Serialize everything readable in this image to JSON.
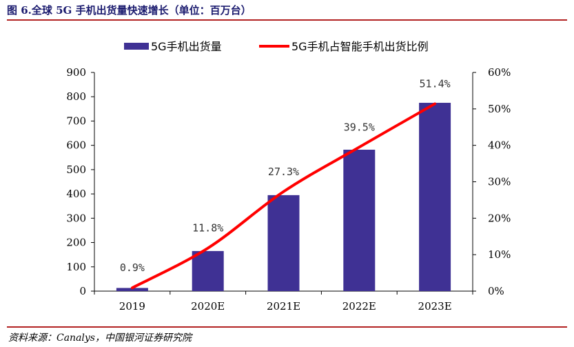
{
  "header": {
    "title": "图 6.全球 5G 手机出货量快速增长（单位：百万台）"
  },
  "footer": {
    "source": "资料来源：Canalys，中国银河证券研究院"
  },
  "colors": {
    "bar": "#3f3194",
    "line": "#ff0000",
    "rule": "#b22222"
  },
  "chart_data": {
    "type": "bar",
    "categories": [
      "2019",
      "2020E",
      "2021E",
      "2022E",
      "2023E"
    ],
    "series": [
      {
        "name": "5G手机出货量",
        "type": "bar",
        "axis": "left",
        "values": [
          13,
          165,
          395,
          582,
          775
        ]
      },
      {
        "name": "5G手机占智能手机出货比例",
        "type": "line",
        "axis": "right",
        "values": [
          0.9,
          11.8,
          27.3,
          39.5,
          51.4
        ],
        "labels": [
          "0.9%",
          "11.8%",
          "27.3%",
          "39.5%",
          "51.4%"
        ]
      }
    ],
    "y_left": {
      "min": 0,
      "max": 900,
      "step": 100,
      "ticks": [
        "0",
        "100",
        "200",
        "300",
        "400",
        "500",
        "600",
        "700",
        "800",
        "900"
      ]
    },
    "y_right": {
      "min": 0,
      "max": 60,
      "step": 10,
      "ticks": [
        "0%",
        "10%",
        "20%",
        "30%",
        "40%",
        "50%",
        "60%"
      ]
    },
    "legend": {
      "placement": "top"
    },
    "grid": false
  }
}
